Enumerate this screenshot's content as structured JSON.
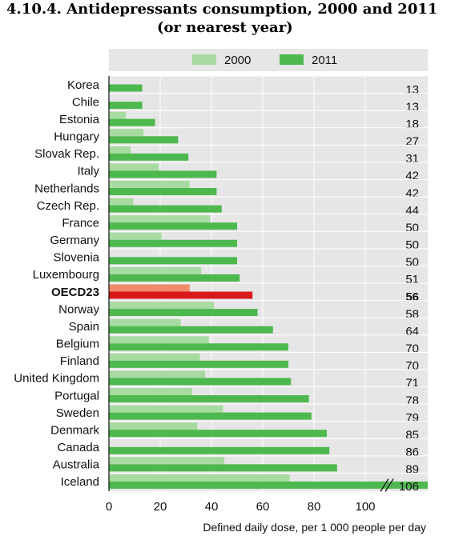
{
  "figure": {
    "title_line1": "4.10.4.  Antidepressants consumption, 2000 and 2011",
    "title_line2": "(or nearest year)"
  },
  "chart_data": {
    "type": "bar",
    "orientation": "horizontal",
    "xlabel": "Defined daily dose, per 1 000 people per day",
    "xlim": [
      0,
      100
    ],
    "xticks": [
      0,
      20,
      40,
      60,
      80,
      100
    ],
    "grid": true,
    "legend": "top",
    "axis_break": "Iceland 2011 bar exceeds axis maximum",
    "categories": [
      "Korea",
      "Chile",
      "Estonia",
      "Hungary",
      "Slovak Rep.",
      "Italy",
      "Netherlands",
      "Czech Rep.",
      "France",
      "Germany",
      "Slovenia",
      "Luxembourg",
      "OECD23",
      "Norway",
      "Spain",
      "Belgium",
      "Finland",
      "United Kingdom",
      "Portugal",
      "Sweden",
      "Denmark",
      "Canada",
      "Australia",
      "Iceland"
    ],
    "highlight_category": "OECD23",
    "series": [
      {
        "name": "2000",
        "color": "#a8dba1",
        "highlight_color": "#f08a6a",
        "values": [
          null,
          null,
          6.5,
          13.5,
          8.5,
          19.5,
          31.5,
          9.5,
          39.5,
          20.5,
          null,
          36,
          31.5,
          41,
          28,
          39,
          35.5,
          37.5,
          32.5,
          44.5,
          34.5,
          null,
          45,
          70.5
        ]
      },
      {
        "name": "2011",
        "color": "#4db84e",
        "highlight_color": "#d7191c",
        "values": [
          13,
          13,
          18,
          27,
          31,
          42,
          42,
          44,
          50,
          50,
          50,
          51,
          56,
          58,
          64,
          70,
          70,
          71,
          78,
          79,
          85,
          86,
          89,
          106
        ]
      }
    ],
    "value_labels": [
      "13",
      "13",
      "18",
      "27",
      "31",
      "42",
      "42",
      "44",
      "50",
      "50",
      "50",
      "51",
      "56",
      "58",
      "64",
      "70",
      "70",
      "71",
      "78",
      "79",
      "85",
      "86",
      "89",
      "106"
    ],
    "colors": {
      "plot_bg": "#e6e6e6",
      "grid": "#ffffff"
    }
  }
}
